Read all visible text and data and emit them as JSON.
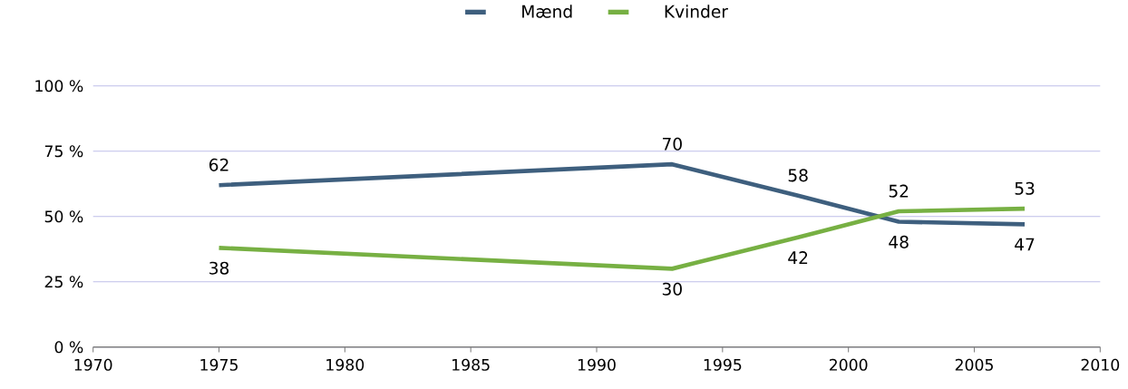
{
  "chart_data": {
    "type": "line",
    "x": [
      1975,
      1993,
      1998,
      2002,
      2007
    ],
    "series": [
      {
        "name": "Mænd",
        "color": "#3e5f7e",
        "values": [
          62,
          70,
          58,
          48,
          47
        ]
      },
      {
        "name": "Kvinder",
        "color": "#77b043",
        "values": [
          38,
          30,
          42,
          52,
          53
        ]
      }
    ],
    "xlim": [
      1970,
      2010
    ],
    "xticks": [
      1970,
      1975,
      1980,
      1985,
      1990,
      1995,
      2000,
      2005,
      2010
    ],
    "ylim": [
      0,
      100
    ],
    "yticks": [
      {
        "value": 0,
        "label": "0 %"
      },
      {
        "value": 25,
        "label": "25 %"
      },
      {
        "value": 50,
        "label": "50 %"
      },
      {
        "value": 75,
        "label": "75 %"
      },
      {
        "value": 100,
        "label": "100 %"
      }
    ],
    "grid": "y",
    "legend": "top",
    "data_labels": true,
    "marker": "none",
    "line_style": "solid"
  }
}
